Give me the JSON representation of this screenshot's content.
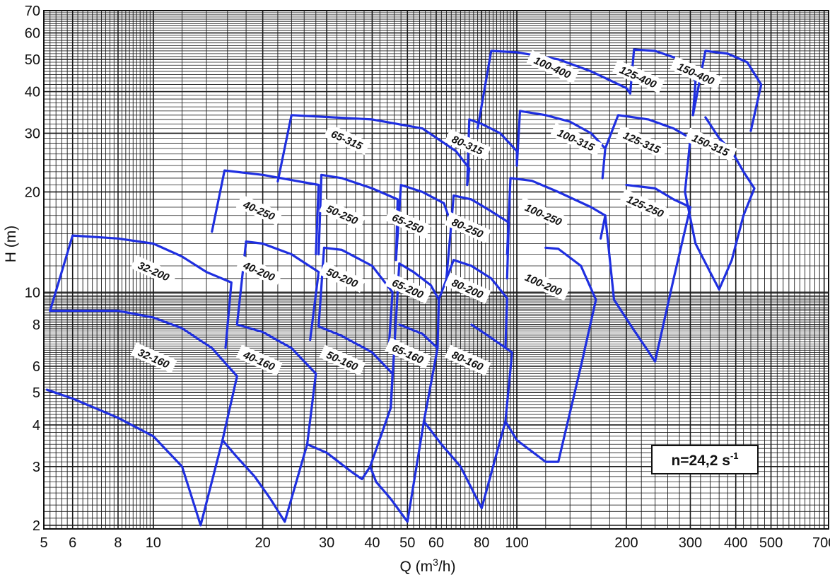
{
  "chart_data": {
    "type": "line",
    "title": "",
    "xlabel": "Q (m",
    "xlabel_sup": "3",
    "xlabel_tail": "/h)",
    "ylabel": "H (m)",
    "x_scale": "log",
    "y_scale": "log",
    "xlim": [
      5,
      720
    ],
    "ylim": [
      1.95,
      70
    ],
    "x_ticks": [
      5,
      6,
      8,
      10,
      20,
      30,
      40,
      50,
      60,
      80,
      100,
      200,
      300,
      400,
      500,
      700
    ],
    "x_tick_labels": [
      "5",
      "6",
      "8",
      "10",
      "20",
      "30",
      "40",
      "50",
      "60",
      "80",
      "100",
      "200",
      "300",
      "400",
      "500",
      "700"
    ],
    "y_ticks": [
      2,
      3,
      4,
      5,
      6,
      8,
      10,
      20,
      30,
      40,
      50,
      60,
      70
    ],
    "y_tick_labels": [
      "2",
      "3",
      "4",
      "5",
      "6",
      "8",
      "10",
      "20",
      "30",
      "40",
      "50",
      "60",
      "70"
    ],
    "grid": true,
    "annotation": {
      "text": "n=24,2 s",
      "sup": "-1"
    },
    "line_color": "#1f2fe0",
    "series": [
      {
        "name": "32-160",
        "label_at": [
          10,
          6.3
        ],
        "points": [
          [
            5.1,
            5.1
          ],
          [
            6,
            4.8
          ],
          [
            8,
            4.2
          ],
          [
            10,
            3.7
          ],
          [
            12,
            3.0
          ],
          [
            13.5,
            2.0
          ],
          [
            15.5,
            3.6
          ],
          [
            17,
            5.6
          ],
          [
            14.5,
            6.8
          ],
          [
            12,
            7.8
          ],
          [
            10,
            8.4
          ],
          [
            8,
            8.8
          ],
          [
            6,
            8.8
          ],
          [
            5.2,
            8.8
          ]
        ]
      },
      {
        "name": "32-200",
        "label_at": [
          10,
          11.5
        ],
        "points": [
          [
            5.2,
            8.8
          ],
          [
            6,
            14.8
          ],
          [
            8,
            14.5
          ],
          [
            10,
            14.0
          ],
          [
            12,
            12.8
          ],
          [
            14,
            11.5
          ],
          [
            16.4,
            10.7
          ],
          [
            15.8,
            6.8
          ]
        ]
      },
      {
        "name": "40-160",
        "label_at": [
          19.5,
          6.2
        ],
        "points": [
          [
            15.5,
            3.6
          ],
          [
            17,
            3.2
          ],
          [
            19,
            2.8
          ],
          [
            21,
            2.4
          ],
          [
            23,
            2.05
          ],
          [
            26.5,
            3.5
          ],
          [
            28,
            5.7
          ],
          [
            24,
            6.8
          ],
          [
            20,
            7.6
          ],
          [
            17,
            8.0
          ]
        ]
      },
      {
        "name": "40-200",
        "label_at": [
          19.5,
          11.5
        ],
        "points": [
          [
            17,
            8.0
          ],
          [
            18,
            14.2
          ],
          [
            20,
            14.0
          ],
          [
            24,
            13.0
          ],
          [
            28.5,
            11.5
          ],
          [
            27,
            7.2
          ]
        ]
      },
      {
        "name": "40-250",
        "label_at": [
          19.5,
          17.5
        ],
        "points": [
          [
            14.5,
            15.2
          ],
          [
            15.7,
            23.2
          ],
          [
            20,
            22.5
          ],
          [
            28.5,
            21.0
          ],
          [
            28,
            13.0
          ]
        ]
      },
      {
        "name": "50-160",
        "label_at": [
          33,
          6.2
        ],
        "points": [
          [
            26.5,
            3.5
          ],
          [
            30,
            3.3
          ],
          [
            35,
            2.9
          ],
          [
            37.5,
            2.75
          ],
          [
            39.5,
            3.0
          ],
          [
            45,
            4.5
          ],
          [
            45.5,
            5.7
          ],
          [
            40,
            6.6
          ],
          [
            33,
            7.4
          ],
          [
            28.5,
            7.9
          ]
        ]
      },
      {
        "name": "50-200",
        "label_at": [
          33,
          11.0
        ],
        "points": [
          [
            28.5,
            7.9
          ],
          [
            29.5,
            13.6
          ],
          [
            33,
            13.4
          ],
          [
            40,
            12.0
          ],
          [
            45.5,
            10.0
          ],
          [
            44.5,
            7.0
          ]
        ]
      },
      {
        "name": "50-250",
        "label_at": [
          33,
          17.0
        ],
        "points": [
          [
            28.5,
            13.0
          ],
          [
            29,
            22.5
          ],
          [
            33,
            22.0
          ],
          [
            40,
            20.5
          ],
          [
            47,
            19.0
          ],
          [
            46.5,
            12.5
          ]
        ]
      },
      {
        "name": "65-160",
        "label_at": [
          50,
          6.5
        ],
        "points": [
          [
            39.5,
            3.0
          ],
          [
            41,
            2.7
          ],
          [
            45,
            2.4
          ],
          [
            50,
            2.05
          ],
          [
            55.5,
            4.1
          ],
          [
            60.5,
            6.8
          ],
          [
            55,
            7.5
          ],
          [
            47.5,
            8.0
          ]
        ]
      },
      {
        "name": "65-200",
        "label_at": [
          50,
          10.2
        ],
        "points": [
          [
            45,
            4.5
          ],
          [
            47.5,
            12.2
          ],
          [
            52,
            11.5
          ],
          [
            58,
            10.5
          ],
          [
            61,
            9.5
          ],
          [
            60.5,
            6.8
          ]
        ]
      },
      {
        "name": "65-250",
        "label_at": [
          50,
          16.0
        ],
        "points": [
          [
            46.5,
            12.5
          ],
          [
            48,
            21.0
          ],
          [
            55,
            20.0
          ],
          [
            63,
            18.5
          ],
          [
            66,
            16.0
          ],
          [
            64,
            11.0
          ]
        ]
      },
      {
        "name": "65-315",
        "label_at": [
          34,
          28.5
        ],
        "points": [
          [
            22,
            21.5
          ],
          [
            24,
            34.0
          ],
          [
            40,
            33.0
          ],
          [
            55,
            31.0
          ],
          [
            68,
            26.5
          ],
          [
            74,
            23.5
          ],
          [
            73,
            21.0
          ]
        ]
      },
      {
        "name": "80-160",
        "label_at": [
          73,
          6.2
        ],
        "points": [
          [
            55.5,
            4.1
          ],
          [
            62,
            3.5
          ],
          [
            70,
            3.0
          ],
          [
            80,
            2.25
          ],
          [
            93,
            4.1
          ],
          [
            97,
            6.6
          ],
          [
            85,
            7.3
          ],
          [
            75,
            8.0
          ]
        ]
      },
      {
        "name": "80-200",
        "label_at": [
          73,
          10.2
        ],
        "points": [
          [
            61,
            9.5
          ],
          [
            67,
            12.5
          ],
          [
            75,
            12.0
          ],
          [
            85,
            11.0
          ],
          [
            94,
            9.6
          ],
          [
            93,
            6.8
          ]
        ]
      },
      {
        "name": "80-250",
        "label_at": [
          73,
          15.5
        ],
        "points": [
          [
            66,
            16.0
          ],
          [
            67,
            19.5
          ],
          [
            75,
            19.0
          ],
          [
            85,
            17.5
          ],
          [
            95,
            16.2
          ],
          [
            94,
            11.0
          ]
        ]
      },
      {
        "name": "80-315",
        "label_at": [
          73,
          27.5
        ],
        "points": [
          [
            73,
            21.0
          ],
          [
            74,
            33.0
          ],
          [
            80,
            32.0
          ],
          [
            90,
            30.0
          ],
          [
            100,
            26.5
          ],
          [
            100,
            24.0
          ]
        ]
      },
      {
        "name": "100-200",
        "label_at": [
          118,
          10.5
        ],
        "points": [
          [
            93,
            4.1
          ],
          [
            100,
            3.6
          ],
          [
            120,
            3.1
          ],
          [
            130,
            3.1
          ],
          [
            150,
            6.0
          ],
          [
            165,
            9.5
          ],
          [
            150,
            12.0
          ],
          [
            130,
            13.5
          ],
          [
            120,
            13.6
          ]
        ]
      },
      {
        "name": "100-250",
        "label_at": [
          118,
          17.0
        ],
        "points": [
          [
            94,
            13.0
          ],
          [
            96,
            22.0
          ],
          [
            110,
            21.6
          ],
          [
            130,
            20.0
          ],
          [
            160,
            18.0
          ],
          [
            175,
            17.0
          ],
          [
            170,
            14.5
          ]
        ]
      },
      {
        "name": "100-315",
        "label_at": [
          145,
          28.5
        ],
        "points": [
          [
            100,
            24.0
          ],
          [
            102,
            35.0
          ],
          [
            120,
            34.0
          ],
          [
            140,
            32.5
          ],
          [
            160,
            30.0
          ],
          [
            175,
            27.0
          ],
          [
            172,
            22.0
          ]
        ]
      },
      {
        "name": "100-400",
        "label_at": [
          125,
          47.0
        ],
        "points": [
          [
            78,
            31.0
          ],
          [
            85,
            53.0
          ],
          [
            100,
            52.5
          ],
          [
            130,
            50.0
          ],
          [
            160,
            46.0
          ],
          [
            200,
            41.0
          ],
          [
            205,
            39.5
          ]
        ]
      },
      {
        "name": "125-250",
        "label_at": [
          225,
          18.0
        ],
        "points": [
          [
            175,
            17.0
          ],
          [
            185,
            9.5
          ],
          [
            205,
            8.0
          ],
          [
            240,
            6.2
          ],
          [
            270,
            11.0
          ],
          [
            300,
            18.0
          ],
          [
            270,
            19.0
          ],
          [
            240,
            20.5
          ],
          [
            200,
            21.0
          ]
        ]
      },
      {
        "name": "125-315",
        "label_at": [
          220,
          28.0
        ],
        "points": [
          [
            175,
            27.0
          ],
          [
            190,
            34.0
          ],
          [
            230,
            33.0
          ],
          [
            270,
            31.0
          ],
          [
            300,
            29.0
          ],
          [
            290,
            20.0
          ]
        ]
      },
      {
        "name": "125-400",
        "label_at": [
          215,
          44.0
        ],
        "points": [
          [
            205,
            39.5
          ],
          [
            210,
            53.5
          ],
          [
            240,
            53.0
          ],
          [
            280,
            50.0
          ],
          [
            310,
            43.0
          ],
          [
            305,
            34.0
          ]
        ]
      },
      {
        "name": "150-315",
        "label_at": [
          340,
          27.5
        ],
        "points": [
          [
            290,
            20.0
          ],
          [
            310,
            14.0
          ],
          [
            340,
            11.5
          ],
          [
            360,
            10.2
          ],
          [
            390,
            12.5
          ],
          [
            420,
            17.0
          ],
          [
            450,
            20.5
          ],
          [
            420,
            23.0
          ],
          [
            390,
            26.5
          ],
          [
            360,
            29.0
          ],
          [
            330,
            33.5
          ]
        ]
      },
      {
        "name": "150-400",
        "label_at": [
          310,
          45.0
        ],
        "points": [
          [
            305,
            34.0
          ],
          [
            330,
            53.0
          ],
          [
            380,
            52.0
          ],
          [
            430,
            49.0
          ],
          [
            470,
            42.0
          ],
          [
            440,
            30.5
          ]
        ]
      }
    ]
  }
}
